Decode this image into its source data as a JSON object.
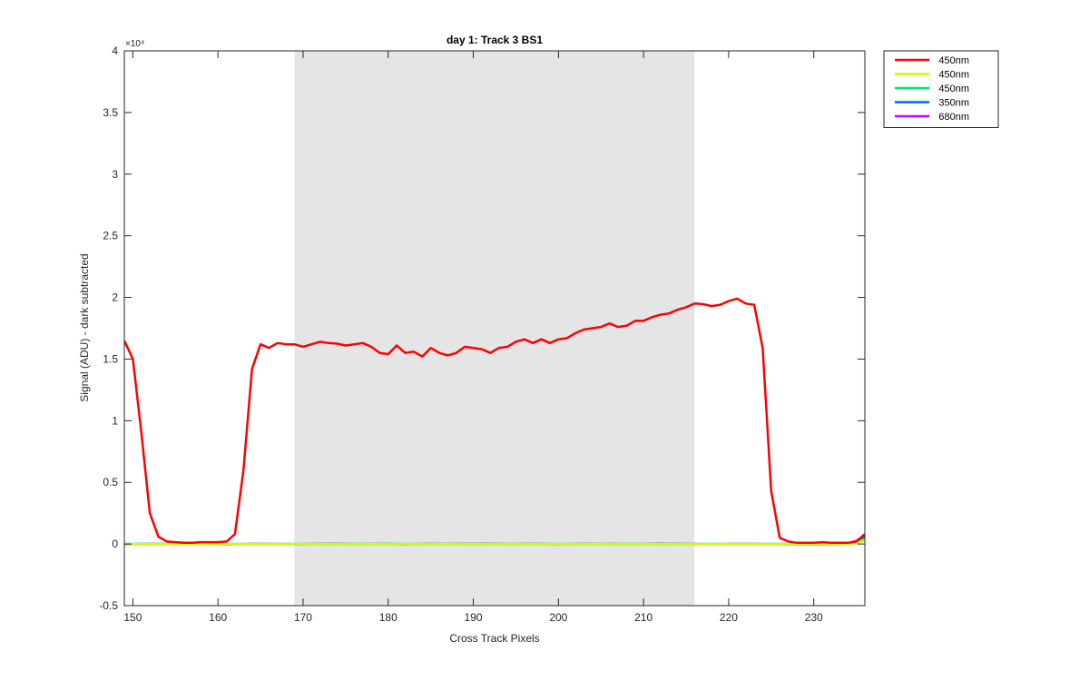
{
  "chart_data": {
    "type": "line",
    "title": "day 1: Track 3  BS1",
    "xlabel": "Cross Track Pixels",
    "ylabel": "Signal (ADU) - dark subtracted",
    "y_exponent_label": "×10⁴",
    "y_display_scale": 10000,
    "xlim": [
      149,
      236
    ],
    "ylim": [
      -5000,
      40000
    ],
    "xticks": [
      150,
      160,
      170,
      180,
      190,
      200,
      210,
      220,
      230
    ],
    "yticks": [
      -5000,
      0,
      5000,
      10000,
      15000,
      20000,
      25000,
      30000,
      35000,
      40000
    ],
    "ytick_labels": [
      "-0.5",
      "0",
      "0.5",
      "1",
      "1.5",
      "2",
      "2.5",
      "3",
      "3.5",
      "4"
    ],
    "grid": false,
    "legend_position": "outside-top-right",
    "shaded_region": {
      "x": [
        169,
        216
      ],
      "color": "#e5e5e5"
    },
    "series": [
      {
        "name": "450nm",
        "color": "#ff0000",
        "x": [
          149,
          150,
          151,
          152,
          153,
          154,
          155,
          156,
          157,
          158,
          159,
          160,
          161,
          162,
          163,
          164,
          165,
          166,
          167,
          168,
          169,
          170,
          171,
          172,
          173,
          174,
          175,
          176,
          177,
          178,
          179,
          180,
          181,
          182,
          183,
          184,
          185,
          186,
          187,
          188,
          189,
          190,
          191,
          192,
          193,
          194,
          195,
          196,
          197,
          198,
          199,
          200,
          201,
          202,
          203,
          204,
          205,
          206,
          207,
          208,
          209,
          210,
          211,
          212,
          213,
          214,
          215,
          216,
          217,
          218,
          219,
          220,
          221,
          222,
          223,
          224,
          225,
          226,
          227,
          228,
          229,
          230,
          231,
          232,
          233,
          234,
          235,
          236
        ],
        "y": [
          16500,
          15000,
          9000,
          2500,
          600,
          200,
          150,
          100,
          100,
          150,
          150,
          150,
          200,
          800,
          6000,
          14200,
          16200,
          15900,
          16300,
          16200,
          16200,
          16000,
          16200,
          16400,
          16300,
          16250,
          16100,
          16200,
          16300,
          16000,
          15500,
          15400,
          16100,
          15500,
          15600,
          15200,
          15900,
          15500,
          15300,
          15500,
          16000,
          15900,
          15800,
          15500,
          15900,
          16000,
          16400,
          16600,
          16300,
          16600,
          16300,
          16600,
          16700,
          17100,
          17400,
          17500,
          17600,
          17900,
          17600,
          17700,
          18100,
          18100,
          18400,
          18600,
          18700,
          19000,
          19200,
          19500,
          19450,
          19300,
          19400,
          19700,
          19900,
          19500,
          19400,
          15900,
          4300,
          500,
          200,
          100,
          100,
          100,
          150,
          100,
          100,
          100,
          200,
          800
        ]
      },
      {
        "name": "450nm",
        "color": "#ccff00",
        "x": [
          149,
          160,
          170,
          180,
          190,
          200,
          210,
          220,
          230,
          234,
          235,
          236
        ],
        "y": [
          0,
          0,
          0,
          0,
          0,
          0,
          0,
          0,
          0,
          20,
          60,
          300
        ]
      },
      {
        "name": "450nm",
        "color": "#00e67a",
        "x": [
          149,
          160,
          170,
          180,
          190,
          200,
          210,
          220,
          230,
          234,
          235,
          236
        ],
        "y": [
          0,
          0,
          0,
          0,
          0,
          0,
          0,
          0,
          0,
          20,
          80,
          400
        ]
      },
      {
        "name": "350nm",
        "color": "#0066ff",
        "x": [
          149,
          160,
          170,
          180,
          190,
          200,
          210,
          220,
          230,
          234,
          235,
          236
        ],
        "y": [
          0,
          0,
          0,
          0,
          0,
          0,
          0,
          0,
          0,
          30,
          120,
          550
        ]
      },
      {
        "name": "680nm",
        "color": "#cc00ff",
        "x": [
          149,
          152,
          155,
          158,
          161,
          164,
          167,
          170,
          173,
          176,
          179,
          182,
          185,
          188,
          191,
          194,
          197,
          200,
          203,
          206,
          209,
          212,
          215,
          218,
          221,
          224,
          227,
          230,
          233,
          234,
          235,
          236
        ],
        "y": [
          -20,
          10,
          -10,
          20,
          -30,
          10,
          0,
          -20,
          20,
          -10,
          10,
          -20,
          10,
          0,
          20,
          -10,
          10,
          -20,
          10,
          0,
          -10,
          20,
          0,
          -10,
          10,
          0,
          -20,
          -30,
          0,
          50,
          250,
          700
        ]
      }
    ]
  }
}
